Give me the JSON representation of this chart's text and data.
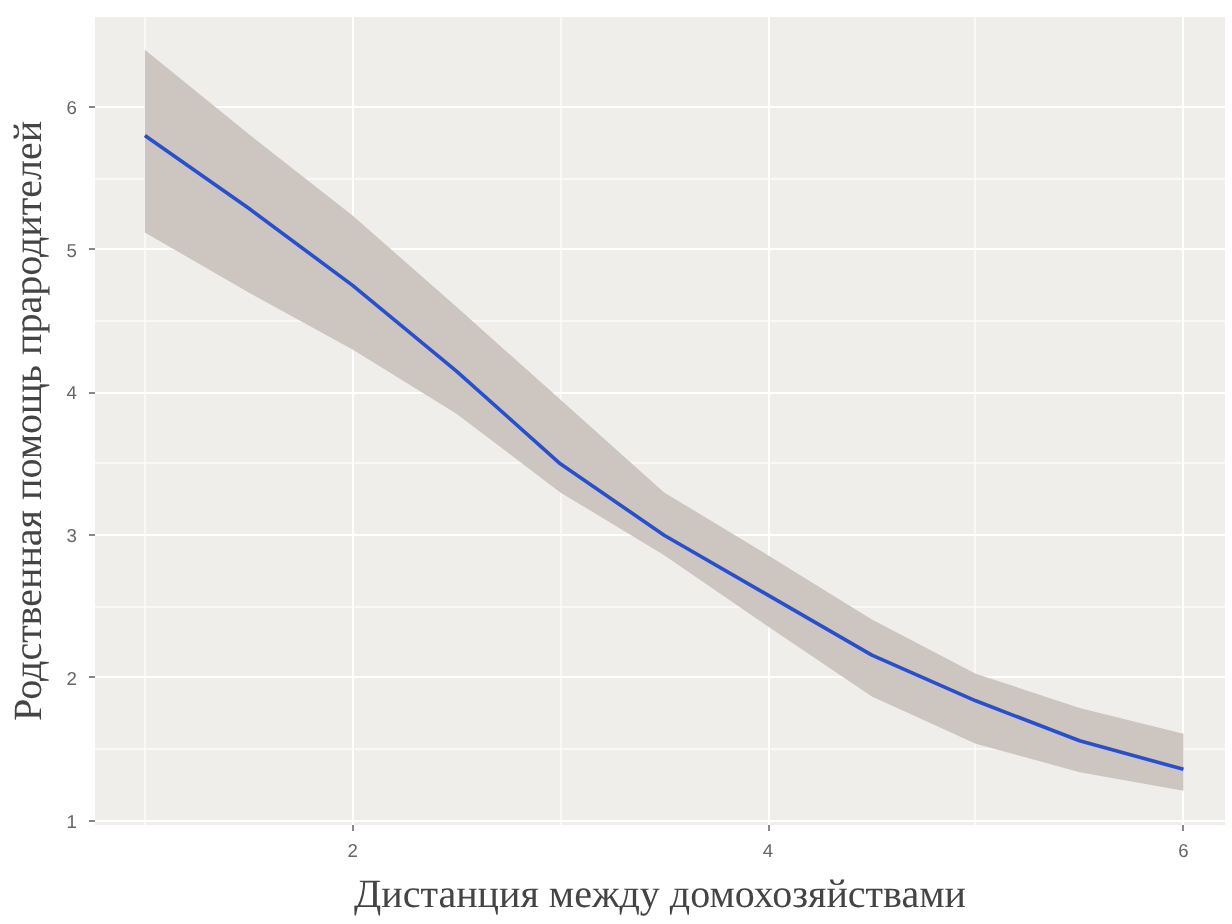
{
  "chart_data": {
    "type": "line",
    "xlabel": "Дистанция между домохозяйствами",
    "ylabel": "Родственная помощь прародителей",
    "x": [
      1,
      1.5,
      2,
      2.5,
      3,
      3.5,
      4,
      4.5,
      5,
      5.5,
      6
    ],
    "series": [
      {
        "color": "#2a4fcc",
        "values": [
          5.8,
          5.29,
          4.75,
          4.15,
          3.5,
          3.0,
          2.58,
          2.16,
          1.84,
          1.56,
          1.36
        ],
        "lower": [
          5.12,
          4.7,
          4.3,
          3.85,
          3.3,
          2.86,
          2.36,
          1.87,
          1.54,
          1.34,
          1.21
        ],
        "upper": [
          6.4,
          5.81,
          5.24,
          4.6,
          3.95,
          3.3,
          2.86,
          2.41,
          2.03,
          1.79,
          1.61
        ]
      }
    ],
    "xlim": [
      0.76,
      6.2
    ],
    "ylim": [
      0.97,
      6.63
    ],
    "xticks": [
      2,
      4,
      6
    ],
    "yticks": [
      1,
      2,
      3,
      4,
      5,
      6
    ],
    "grid": true,
    "marker": "none",
    "line_style": "solid"
  }
}
